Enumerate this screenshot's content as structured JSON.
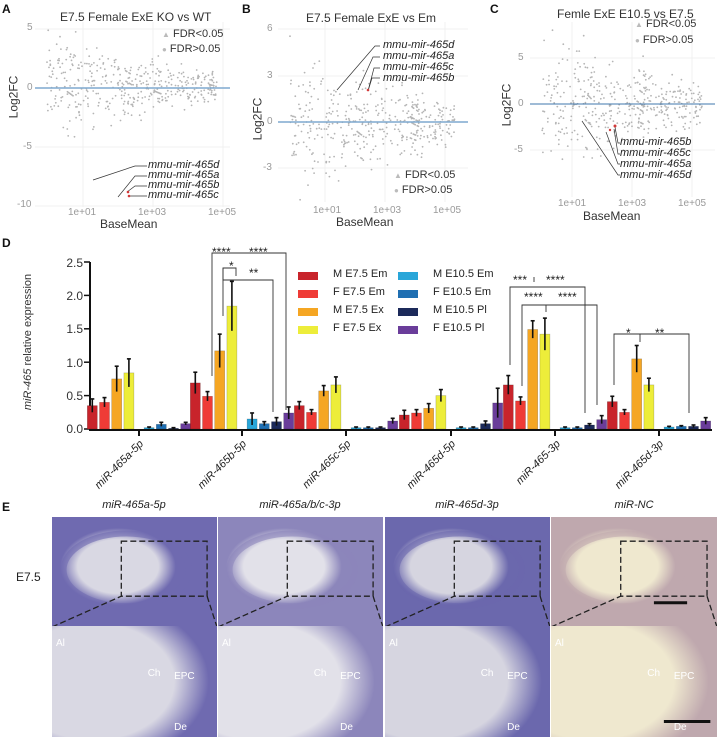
{
  "panels": {
    "A": {
      "label": "A",
      "title": "E7.5 Female ExE KO vs WT",
      "ylabel": "Log2FC",
      "xlabel": "BaseMean",
      "yticks": [
        "5",
        "0",
        "-5",
        "-10"
      ],
      "xticks": [
        "1e+01",
        "1e+03",
        "1e+05"
      ],
      "legend": [
        "FDR<0.05",
        "FDR>0.05"
      ],
      "annotations": [
        "mmu-mir-465d",
        "mmu-mir-465a",
        "mmu-mir-465b",
        "mmu-mir-465c"
      ]
    },
    "B": {
      "label": "B",
      "title": "E7.5 Female ExE vs Em",
      "ylabel": "Log2FC",
      "xlabel": "BaseMean",
      "yticks": [
        "6",
        "3",
        "0",
        "-3"
      ],
      "xticks": [
        "1e+01",
        "1e+03",
        "1e+05"
      ],
      "legend": [
        "FDR<0.05",
        "FDR>0.05"
      ],
      "annotations": [
        "mmu-mir-465d",
        "mmu-mir-465a",
        "mmu-mir-465c",
        "mmu-mir-465b"
      ]
    },
    "C": {
      "label": "C",
      "title": "Femle ExE E10.5 vs E7.5",
      "ylabel": "Log2FC",
      "xlabel": "BaseMean",
      "yticks": [
        "5",
        "0",
        "-5"
      ],
      "xticks": [
        "1e+01",
        "1e+03",
        "1e+05"
      ],
      "legend": [
        "FDR<0.05",
        "FDR>0.05"
      ],
      "annotations": [
        "mmu-mir-465b",
        "mmu-mir-465c",
        "mmu-mir-465a",
        "mmu-mir-465d"
      ]
    },
    "D": {
      "label": "D",
      "ylabel_italic": "miR-465",
      "ylabel_rest": " relative expression",
      "yticks": [
        "2.5",
        "2.0",
        "1.5",
        "1.0",
        "0.5",
        "0.0"
      ],
      "significance": {
        "b5p": [
          "****",
          "****",
          "*",
          "**"
        ],
        "s3p": [
          "***",
          "****",
          "****",
          "****"
        ],
        "d3p": [
          "*",
          "**"
        ]
      }
    },
    "E": {
      "label": "E",
      "row_label": "E7.5",
      "columns": [
        "miR-465a-5p",
        "miR-465a/b/c-3p",
        "miR-465d-3p",
        "miR-NC"
      ],
      "tissue_labels": {
        "Al": "Al",
        "Ch": "Ch",
        "EPC": "EPC",
        "De": "De"
      }
    }
  },
  "chart_data": [
    {
      "type": "scatter",
      "title": "E7.5 Female ExE KO vs WT",
      "xlabel": "BaseMean",
      "ylabel": "Log2FC",
      "xscale": "log10",
      "xlim": [
        1,
        300000
      ],
      "ylim": [
        -10,
        5.5
      ],
      "legend": [
        "FDR<0.05",
        "FDR>0.05"
      ],
      "highlighted": [
        {
          "name": "mmu-mir-465d",
          "x": 15,
          "y": -8.0
        },
        {
          "name": "mmu-mir-465a",
          "x": 90,
          "y": -9.3
        },
        {
          "name": "mmu-mir-465b",
          "x": 180,
          "y": -8.7
        },
        {
          "name": "mmu-mir-465c",
          "x": 200,
          "y": -9.3
        }
      ],
      "hline": 0
    },
    {
      "type": "scatter",
      "title": "E7.5 Female ExE vs Em",
      "xlabel": "BaseMean",
      "ylabel": "Log2FC",
      "xscale": "log10",
      "xlim": [
        1,
        300000
      ],
      "ylim": [
        -5.5,
        6
      ],
      "legend": [
        "FDR<0.05",
        "FDR>0.05"
      ],
      "highlighted": [
        {
          "name": "mmu-mir-465d",
          "x": 20,
          "y": 2.1
        },
        {
          "name": "mmu-mir-465a",
          "x": 150,
          "y": 2.0
        },
        {
          "name": "mmu-mir-465c",
          "x": 300,
          "y": 1.9
        },
        {
          "name": "mmu-mir-465b",
          "x": 300,
          "y": 1.9
        }
      ],
      "hline": 0
    },
    {
      "type": "scatter",
      "title": "Femle ExE E10.5 vs E7.5",
      "xlabel": "BaseMean",
      "ylabel": "Log2FC",
      "xscale": "log10",
      "xlim": [
        1,
        300000
      ],
      "ylim": [
        -9,
        8
      ],
      "legend": [
        "FDR<0.05",
        "FDR>0.05"
      ],
      "highlighted": [
        {
          "name": "mmu-mir-465b",
          "x": 300,
          "y": -2.5
        },
        {
          "name": "mmu-mir-465c",
          "x": 300,
          "y": -2.6
        },
        {
          "name": "mmu-mir-465a",
          "x": 150,
          "y": -2.8
        },
        {
          "name": "mmu-mir-465d",
          "x": 25,
          "y": -1.8
        }
      ],
      "hline": 0
    },
    {
      "type": "bar",
      "title": "",
      "xlabel": "",
      "ylabel": "miR-465 relative expression",
      "ylim": [
        0,
        2.5
      ],
      "categories": [
        "miR-465a-5p",
        "miR-465b-5p",
        "miR-465c-5p",
        "miR-465d-5p",
        "miR-465-3p",
        "miR-465d-3p"
      ],
      "series": [
        {
          "name": "M E7.5 Em",
          "color": "#c8242b",
          "values": [
            0.35,
            0.69,
            0.35,
            0.21,
            0.66,
            0.41
          ],
          "errors": [
            0.1,
            0.16,
            0.06,
            0.07,
            0.14,
            0.08
          ]
        },
        {
          "name": "F E7.5 Em",
          "color": "#ef3b36",
          "values": [
            0.4,
            0.49,
            0.25,
            0.24,
            0.42,
            0.25
          ],
          "errors": [
            0.07,
            0.07,
            0.04,
            0.05,
            0.06,
            0.04
          ]
        },
        {
          "name": "M E7.5 Ex",
          "color": "#f5a623",
          "values": [
            0.75,
            1.17,
            0.57,
            0.31,
            1.49,
            1.05
          ],
          "errors": [
            0.19,
            0.25,
            0.08,
            0.07,
            0.13,
            0.2
          ]
        },
        {
          "name": "F E7.5 Ex",
          "color": "#eded3a",
          "values": [
            0.84,
            1.84,
            0.66,
            0.5,
            1.42,
            0.66
          ],
          "errors": [
            0.21,
            0.37,
            0.12,
            0.09,
            0.24,
            0.1
          ]
        },
        {
          "name": "M E10.5 Em",
          "color": "#29a6d9",
          "values": [
            0.02,
            0.15,
            0.02,
            0.02,
            0.02,
            0.03
          ],
          "errors": [
            0.01,
            0.09,
            0.01,
            0.01,
            0.01,
            0.01
          ]
        },
        {
          "name": "F E10.5 Em",
          "color": "#1f6fb2",
          "values": [
            0.07,
            0.08,
            0.02,
            0.02,
            0.02,
            0.04
          ],
          "errors": [
            0.03,
            0.03,
            0.01,
            0.01,
            0.01,
            0.01
          ]
        },
        {
          "name": "M E10.5 Pl",
          "color": "#1c2a5a",
          "values": [
            0.01,
            0.11,
            0.02,
            0.08,
            0.06,
            0.04
          ],
          "errors": [
            0.01,
            0.06,
            0.01,
            0.04,
            0.02,
            0.02
          ]
        },
        {
          "name": "F E10.5 Pl",
          "color": "#6a3d9a",
          "values": [
            0.08,
            0.24,
            0.12,
            0.39,
            0.14,
            0.12
          ],
          "errors": [
            0.02,
            0.09,
            0.04,
            0.22,
            0.06,
            0.05
          ]
        }
      ],
      "legend_position": "top-center"
    }
  ]
}
